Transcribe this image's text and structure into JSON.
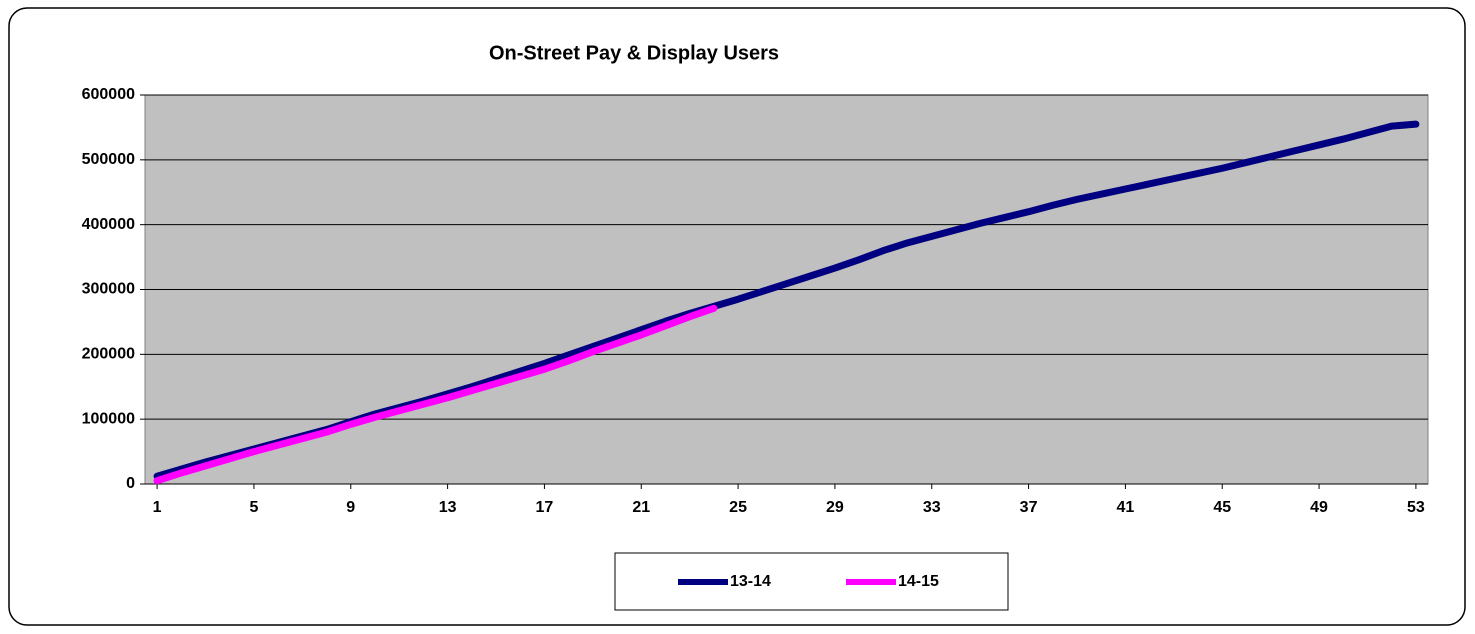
{
  "chart_data": {
    "type": "line",
    "title": "On-Street Pay & Display Users",
    "x": [
      1,
      2,
      3,
      4,
      5,
      6,
      7,
      8,
      9,
      10,
      11,
      12,
      13,
      14,
      15,
      16,
      17,
      18,
      19,
      20,
      21,
      22,
      23,
      24,
      25,
      26,
      27,
      28,
      29,
      30,
      31,
      32,
      33,
      34,
      35,
      36,
      37,
      38,
      39,
      40,
      41,
      42,
      43,
      44,
      45,
      46,
      47,
      48,
      49,
      50,
      51,
      52,
      53
    ],
    "xlim": [
      0.5,
      53.5
    ],
    "xticks": [
      1,
      5,
      9,
      13,
      17,
      21,
      25,
      29,
      33,
      37,
      41,
      45,
      49,
      53
    ],
    "ylim": [
      0,
      600000
    ],
    "yticks": [
      0,
      100000,
      200000,
      300000,
      400000,
      500000,
      600000
    ],
    "grid": true,
    "legend": "bottom",
    "series": [
      {
        "name": "13-14",
        "color": "#000080",
        "values": [
          12000,
          23000,
          34000,
          44000,
          54000,
          64000,
          74000,
          84000,
          96000,
          108000,
          118000,
          128000,
          139000,
          150000,
          162000,
          174000,
          186000,
          199000,
          212000,
          225000,
          238000,
          251000,
          263000,
          274000,
          285000,
          297000,
          309000,
          321000,
          333000,
          346000,
          360000,
          372000,
          382000,
          392000,
          402000,
          411000,
          420000,
          430000,
          439000,
          447000,
          455000,
          463000,
          471000,
          479000,
          487000,
          496000,
          505000,
          514000,
          523000,
          532000,
          542000,
          552000,
          555000
        ]
      },
      {
        "name": "14-15",
        "color": "#ff00ff",
        "values": [
          5000,
          17000,
          28000,
          39000,
          50000,
          60000,
          70000,
          80000,
          92000,
          103000,
          113000,
          123000,
          133000,
          144000,
          155000,
          166000,
          177000,
          190000,
          204000,
          217000,
          230000,
          244000,
          258000,
          271000,
          null,
          null,
          null,
          null,
          null,
          null,
          null,
          null,
          null,
          null,
          null,
          null,
          null,
          null,
          null,
          null,
          null,
          null,
          null,
          null,
          null,
          null,
          null,
          null,
          null,
          null,
          null,
          null,
          null
        ]
      }
    ]
  }
}
